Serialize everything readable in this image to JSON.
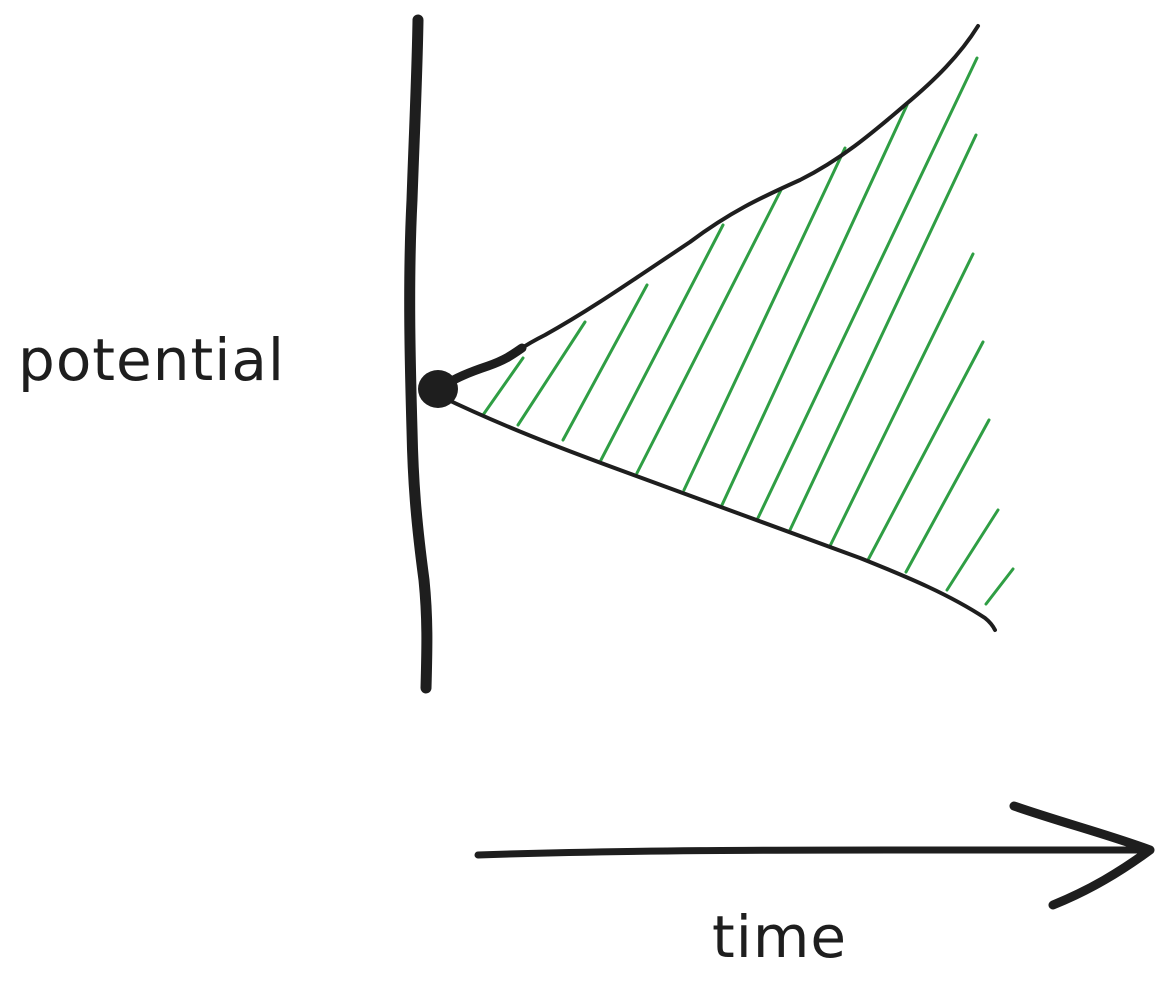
{
  "labels": {
    "y_label": "potential",
    "x_label": "time"
  },
  "colors": {
    "ink": "#1e1e1e",
    "hatch": "#2f9e44",
    "background": "#ffffff"
  }
}
